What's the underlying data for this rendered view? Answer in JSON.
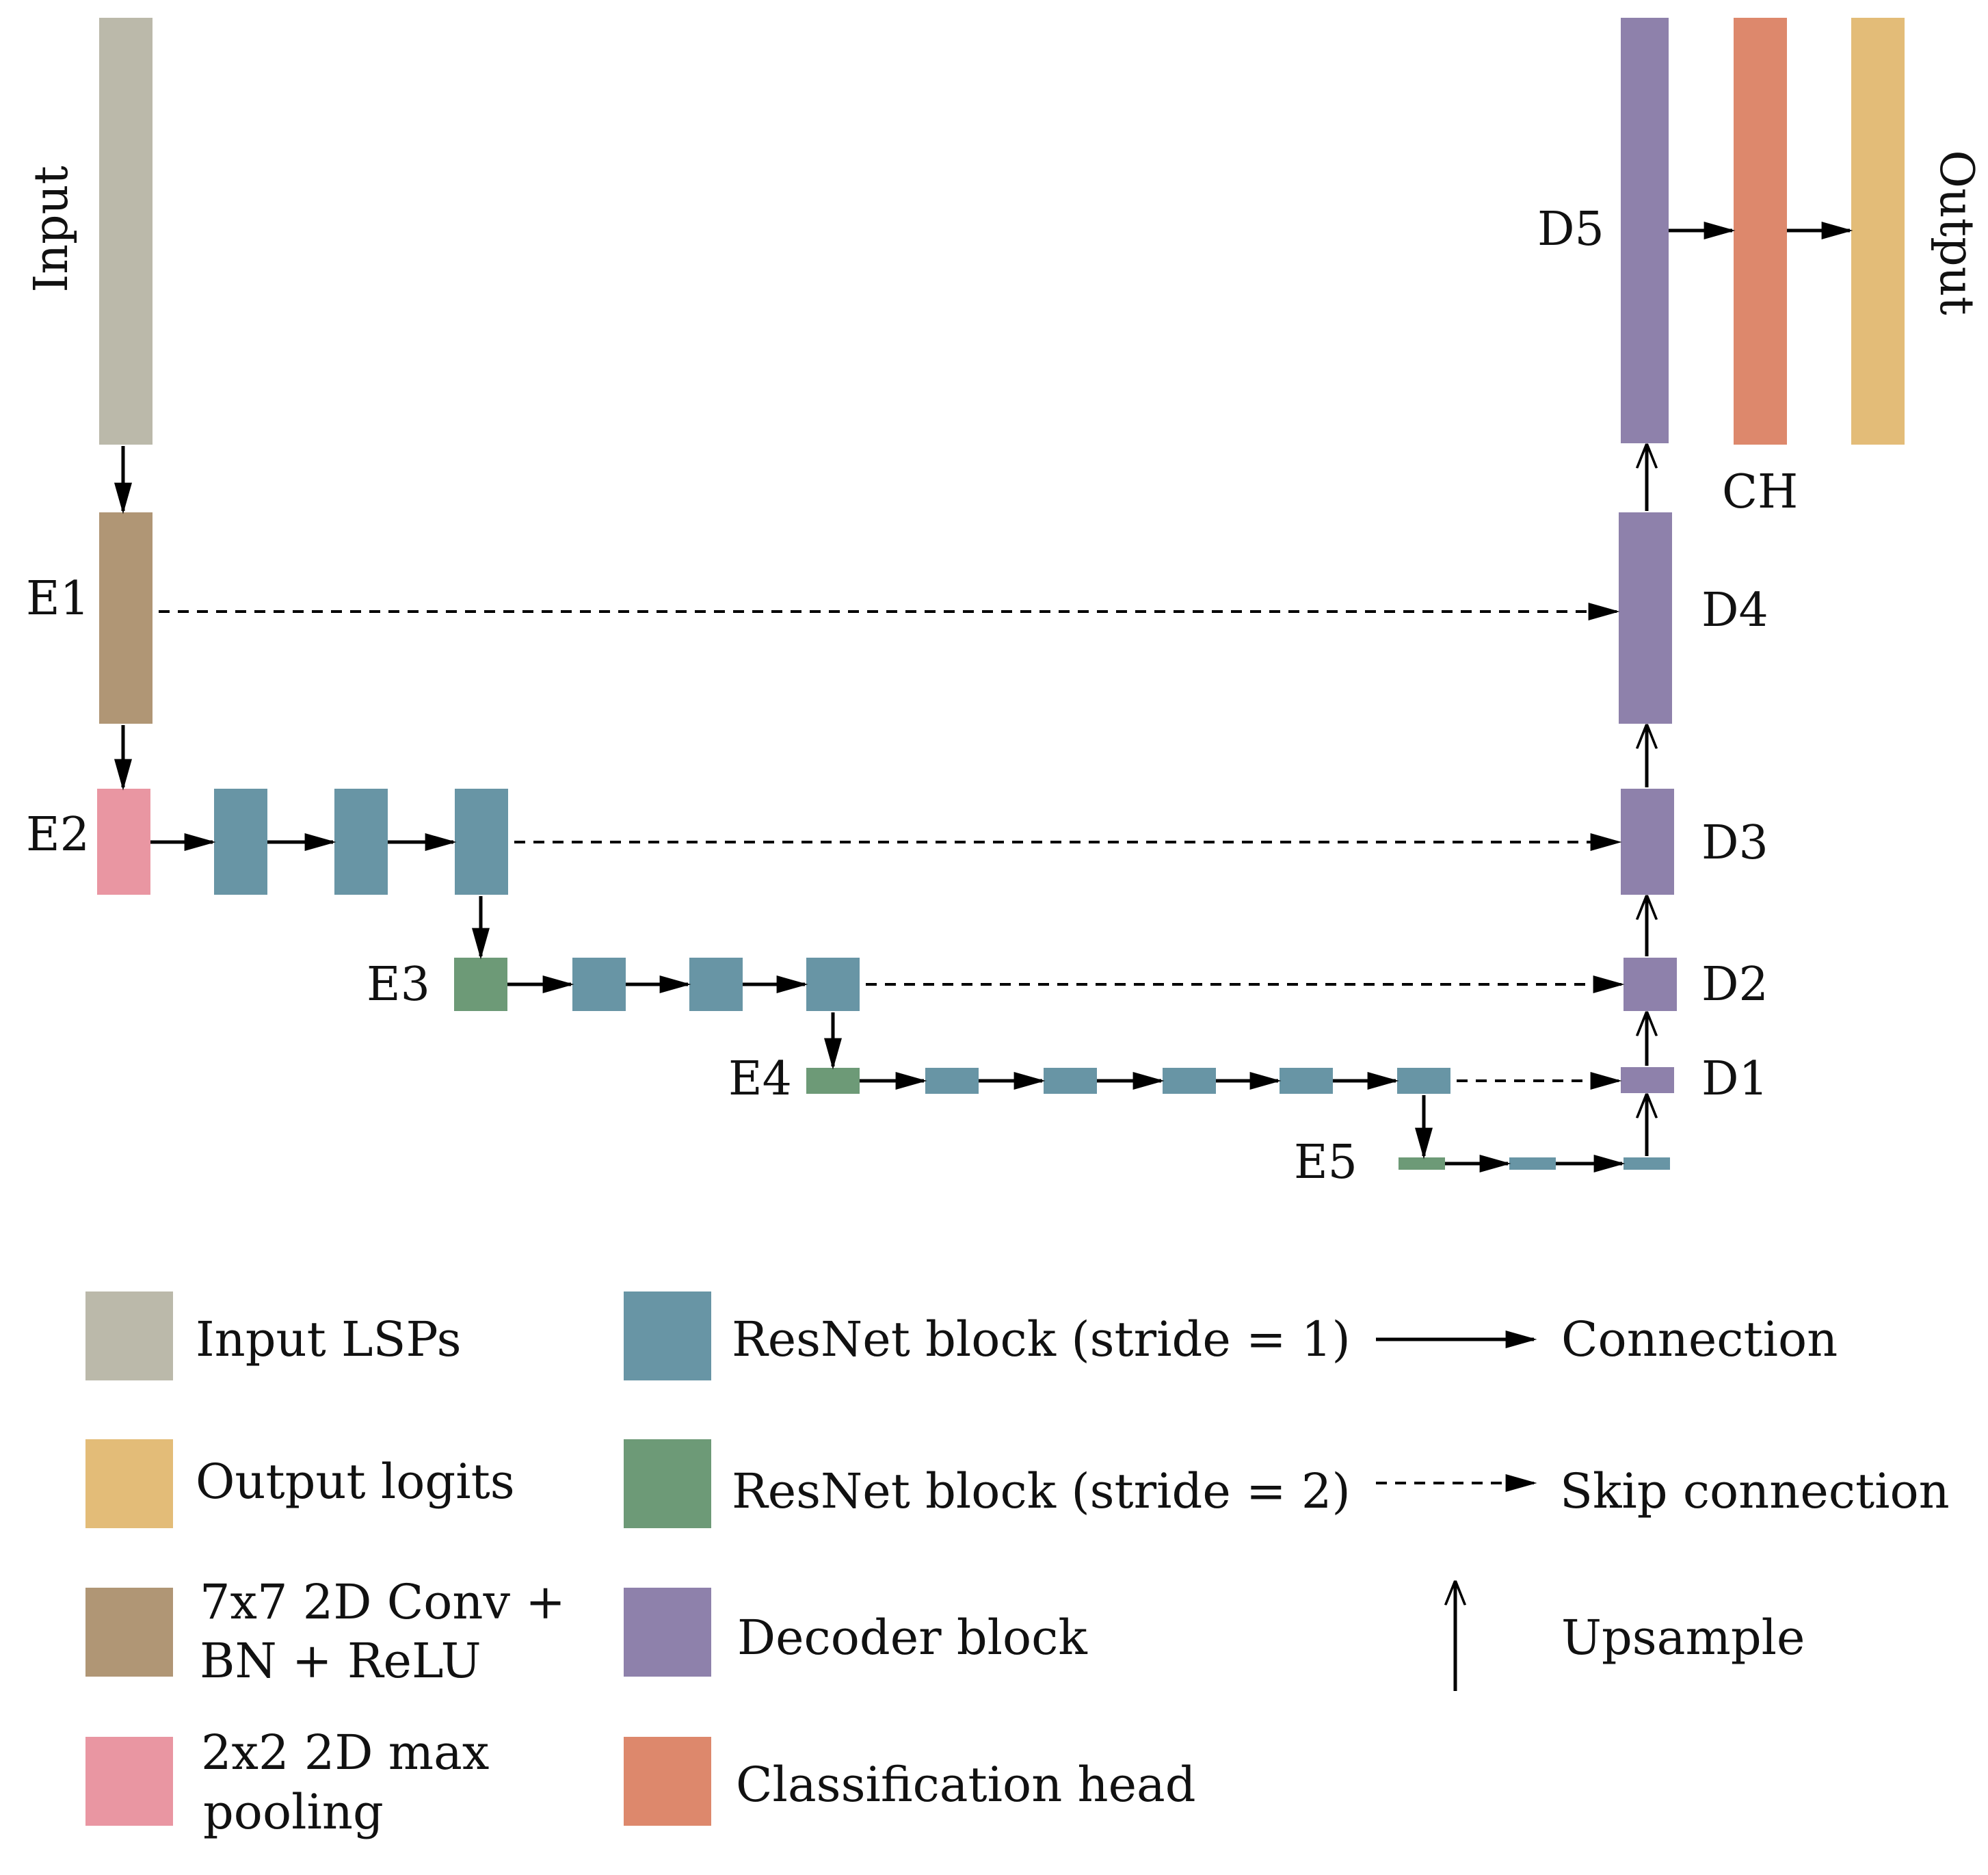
{
  "colors": {
    "input": "#bbb9aa",
    "output": "#e3bc78",
    "conv": "#b09675",
    "pool": "#e996a2",
    "resnet_s1": "#6895a5",
    "resnet_s2": "#6d9a77",
    "decoder": "#8e81ab",
    "head": "#dd886c",
    "line": "#000000"
  },
  "labels": {
    "input": "Input",
    "output": "Output",
    "e1": "E1",
    "e2": "E2",
    "e3": "E3",
    "e4": "E4",
    "e5": "E5",
    "d1": "D1",
    "d2": "D2",
    "d3": "D3",
    "d4": "D4",
    "d5": "D5",
    "ch": "CH"
  },
  "legend": {
    "input_lsps": "Input LSPs",
    "output_logits": "Output logits",
    "conv_line1": "7x7 2D Conv +",
    "conv_line2": "BN + ReLU",
    "pool_line1": "2x2 2D max",
    "pool_line2": "pooling",
    "resnet_s1": "ResNet block (stride = 1)",
    "resnet_s2": "ResNet block (stride = 2)",
    "decoder": "Decoder block",
    "head": "Classification head",
    "connection": "Connection",
    "skip": "Skip connection",
    "upsample": "Upsample"
  }
}
